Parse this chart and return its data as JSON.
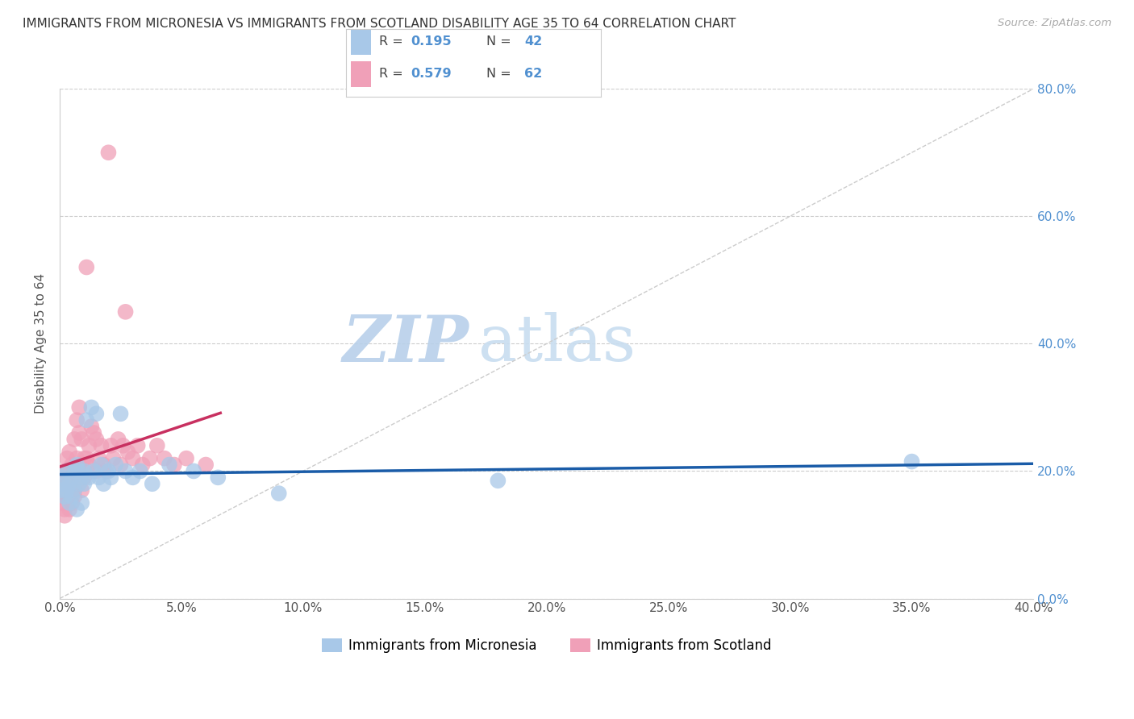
{
  "title": "IMMIGRANTS FROM MICRONESIA VS IMMIGRANTS FROM SCOTLAND DISABILITY AGE 35 TO 64 CORRELATION CHART",
  "source": "Source: ZipAtlas.com",
  "ylabel": "Disability Age 35 to 64",
  "xlim": [
    0.0,
    0.4
  ],
  "ylim": [
    0.0,
    0.8
  ],
  "xticks": [
    0.0,
    0.05,
    0.1,
    0.15,
    0.2,
    0.25,
    0.3,
    0.35,
    0.4
  ],
  "yticks": [
    0.0,
    0.2,
    0.4,
    0.6,
    0.8
  ],
  "legend1_label": "Immigrants from Micronesia",
  "legend2_label": "Immigrants from Scotland",
  "R1": 0.195,
  "N1": 42,
  "R2": 0.579,
  "N2": 62,
  "color_micronesia": "#a8c8e8",
  "color_scotland": "#f0a0b8",
  "line_color_micronesia": "#1a5ca8",
  "line_color_scotland": "#c83060",
  "watermark_text": "ZIPatlas",
  "watermark_color": "#d0e4f4",
  "micronesia_x": [
    0.001,
    0.001,
    0.002,
    0.002,
    0.003,
    0.003,
    0.004,
    0.004,
    0.005,
    0.005,
    0.006,
    0.006,
    0.007,
    0.007,
    0.008,
    0.008,
    0.009,
    0.009,
    0.01,
    0.01,
    0.011,
    0.012,
    0.013,
    0.014,
    0.015,
    0.016,
    0.017,
    0.018,
    0.02,
    0.021,
    0.023,
    0.025,
    0.027,
    0.03,
    0.033,
    0.038,
    0.045,
    0.055,
    0.065,
    0.09,
    0.18,
    0.35
  ],
  "micronesia_y": [
    0.17,
    0.19,
    0.16,
    0.18,
    0.2,
    0.17,
    0.18,
    0.15,
    0.19,
    0.16,
    0.2,
    0.17,
    0.14,
    0.21,
    0.18,
    0.2,
    0.19,
    0.15,
    0.2,
    0.18,
    0.28,
    0.19,
    0.3,
    0.2,
    0.29,
    0.19,
    0.21,
    0.18,
    0.2,
    0.19,
    0.21,
    0.29,
    0.2,
    0.19,
    0.2,
    0.18,
    0.21,
    0.2,
    0.19,
    0.165,
    0.185,
    0.215
  ],
  "scotland_x": [
    0.001,
    0.001,
    0.001,
    0.002,
    0.002,
    0.002,
    0.002,
    0.003,
    0.003,
    0.003,
    0.003,
    0.004,
    0.004,
    0.004,
    0.004,
    0.005,
    0.005,
    0.005,
    0.006,
    0.006,
    0.006,
    0.006,
    0.007,
    0.007,
    0.007,
    0.008,
    0.008,
    0.008,
    0.008,
    0.009,
    0.009,
    0.01,
    0.01,
    0.011,
    0.011,
    0.012,
    0.012,
    0.013,
    0.014,
    0.015,
    0.015,
    0.016,
    0.017,
    0.018,
    0.019,
    0.02,
    0.021,
    0.022,
    0.024,
    0.025,
    0.026,
    0.027,
    0.028,
    0.03,
    0.032,
    0.034,
    0.037,
    0.04,
    0.043,
    0.047,
    0.052,
    0.06
  ],
  "scotland_y": [
    0.16,
    0.18,
    0.15,
    0.14,
    0.17,
    0.2,
    0.13,
    0.22,
    0.16,
    0.2,
    0.18,
    0.17,
    0.14,
    0.23,
    0.16,
    0.21,
    0.15,
    0.19,
    0.2,
    0.25,
    0.17,
    0.16,
    0.28,
    0.22,
    0.2,
    0.3,
    0.19,
    0.21,
    0.26,
    0.17,
    0.25,
    0.22,
    0.19,
    0.52,
    0.22,
    0.24,
    0.21,
    0.27,
    0.26,
    0.25,
    0.2,
    0.22,
    0.24,
    0.21,
    0.2,
    0.7,
    0.24,
    0.22,
    0.25,
    0.21,
    0.24,
    0.45,
    0.23,
    0.22,
    0.24,
    0.21,
    0.22,
    0.24,
    0.22,
    0.21,
    0.22,
    0.21
  ]
}
